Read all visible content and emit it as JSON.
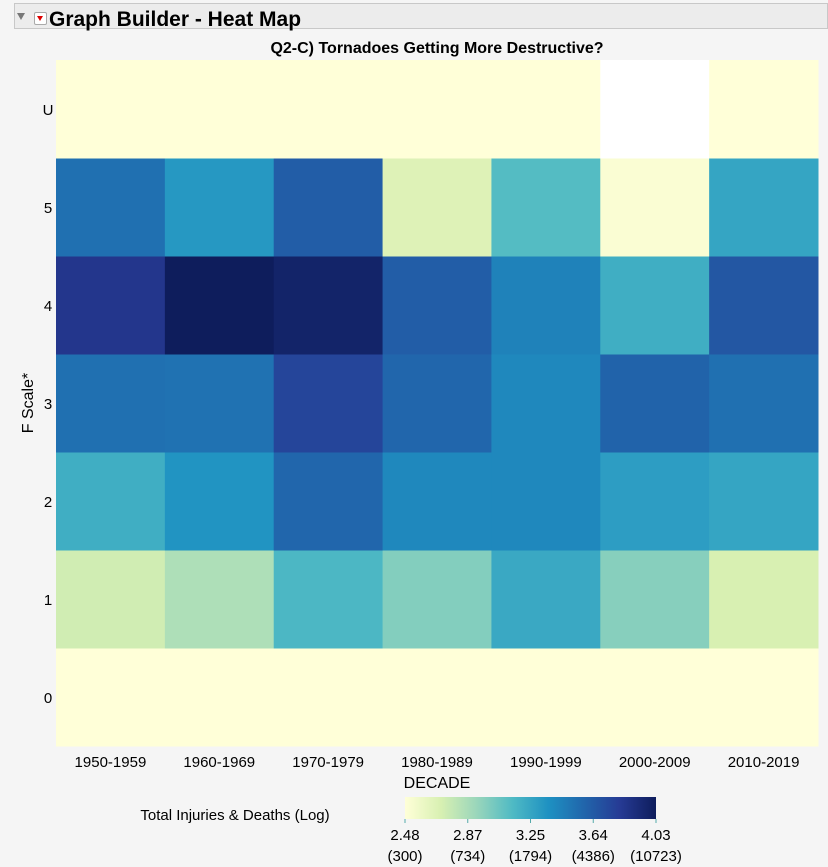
{
  "header": {
    "title": "Graph Builder - Heat Map"
  },
  "colors": {
    "stops": [
      "#ffffd8",
      "#d8f0b2",
      "#9ad6bb",
      "#4fbac4",
      "#1e91c2",
      "#2165ab",
      "#263a94",
      "#0e1d5c"
    ],
    "missing": "#ffffff"
  },
  "chart_data": {
    "type": "heatmap",
    "title": "Q2-C) Tornadoes Getting More Destructive?",
    "xlabel": "DECADE",
    "ylabel": "F Scale*",
    "x": [
      "1950-1959",
      "1960-1969",
      "1970-1979",
      "1980-1989",
      "1990-1999",
      "2000-2009",
      "2010-2019"
    ],
    "y": [
      "0",
      "1",
      "2",
      "3",
      "4",
      "5",
      "U"
    ],
    "values": [
      [
        2.48,
        2.48,
        2.48,
        2.48,
        2.48,
        2.48,
        2.48
      ],
      [
        2.73,
        2.85,
        3.16,
        2.99,
        3.24,
        2.98,
        2.7
      ],
      [
        3.21,
        3.35,
        3.58,
        3.41,
        3.41,
        3.3,
        3.26
      ],
      [
        3.53,
        3.52,
        3.75,
        3.58,
        3.41,
        3.6,
        3.53
      ],
      [
        3.84,
        4.03,
        3.98,
        3.63,
        3.44,
        3.21,
        3.66
      ],
      [
        3.53,
        3.33,
        3.63,
        2.67,
        3.13,
        2.51,
        3.26
      ],
      [
        2.48,
        2.48,
        2.48,
        2.48,
        2.48,
        null,
        2.48
      ]
    ],
    "legend": {
      "title": "Total Injuries & Deaths (Log)",
      "range": [
        2.48,
        4.03
      ],
      "ticks": [
        {
          "value": "2.48",
          "count": "(300)"
        },
        {
          "value": "2.87",
          "count": "(734)"
        },
        {
          "value": "3.25",
          "count": "(1794)"
        },
        {
          "value": "3.64",
          "count": "(4386)"
        },
        {
          "value": "4.03",
          "count": "(10723)"
        }
      ],
      "placement": "bottom"
    }
  }
}
